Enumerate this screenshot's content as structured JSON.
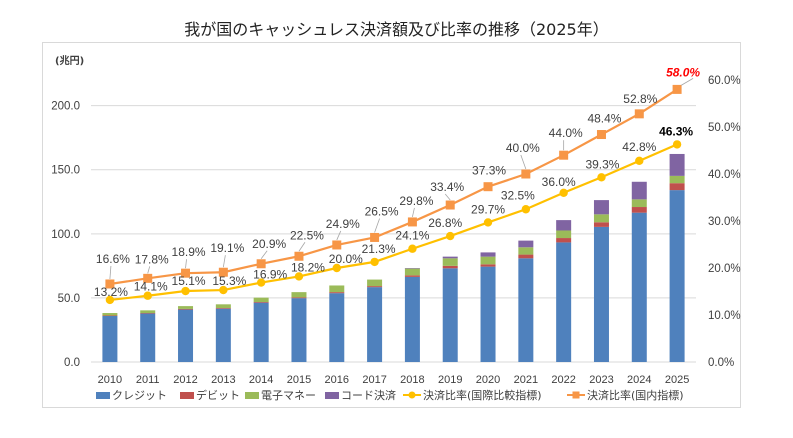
{
  "title": "我が国のキャッシュレス決済額及び比率の推移（2025年）",
  "chart_data": {
    "type": "bar",
    "subtype": "stacked bar with line overlay (secondary axis)",
    "title": "我が国のキャッシュレス決済額及び比率の推移（2025年）",
    "xlabel": "",
    "ylabel": "(兆円)",
    "y2label": "",
    "categories": [
      "2010",
      "2011",
      "2012",
      "2013",
      "2014",
      "2015",
      "2016",
      "2017",
      "2018",
      "2019",
      "2020",
      "2021",
      "2022",
      "2023",
      "2024",
      "2025"
    ],
    "ylim": [
      0,
      220
    ],
    "y_ticks": [
      0,
      50,
      100,
      150,
      200
    ],
    "y_tick_labels": [
      "0.0",
      "50.0",
      "100.0",
      "150.0",
      "200.0"
    ],
    "y2lim": [
      0,
      60
    ],
    "y2_ticks": [
      0,
      10,
      20,
      30,
      40,
      50,
      60
    ],
    "y2_tick_labels": [
      "0.0%",
      "10.0%",
      "20.0%",
      "30.0%",
      "40.0%",
      "50.0%",
      "60.0%"
    ],
    "grid": true,
    "legend_position": "bottom",
    "series": [
      {
        "name": "クレジット",
        "type": "stacked_bar",
        "axis": "left",
        "color": "#4F81BD",
        "values": [
          35.9,
          37.8,
          40.9,
          41.6,
          46.3,
          49.8,
          53.7,
          58.4,
          66.4,
          73.1,
          74.4,
          80.9,
          93.3,
          105.4,
          116.5,
          134.1
        ]
      },
      {
        "name": "デビット",
        "type": "stacked_bar",
        "axis": "left",
        "color": "#C0504D",
        "values": [
          0.4,
          0.4,
          0.5,
          0.5,
          0.5,
          0.6,
          0.8,
          0.8,
          1.2,
          1.9,
          1.8,
          2.9,
          3.4,
          3.6,
          4.4,
          5.4
        ]
      },
      {
        "name": "電子マネー",
        "type": "stacked_bar",
        "axis": "left",
        "color": "#9BBB59",
        "values": [
          1.9,
          2.1,
          2.2,
          2.9,
          3.4,
          4.1,
          5.2,
          5.1,
          5.4,
          5.9,
          6.0,
          5.7,
          5.9,
          6.2,
          6.0,
          5.7
        ]
      },
      {
        "name": "コード決済",
        "type": "stacked_bar",
        "axis": "left",
        "color": "#8064A2",
        "values": [
          0,
          0,
          0,
          0,
          0,
          0,
          0,
          0,
          0.2,
          1.3,
          3.3,
          5.2,
          8.1,
          11.1,
          13.7,
          17.1
        ]
      },
      {
        "name": "決済比率(国際比較指標)",
        "type": "line",
        "axis": "right",
        "marker": "circle",
        "color": "#FFC000",
        "values": [
          13.2,
          14.1,
          15.1,
          15.3,
          16.9,
          18.2,
          20.0,
          21.3,
          24.1,
          26.8,
          29.7,
          32.5,
          36.0,
          39.3,
          42.8,
          46.3
        ],
        "labels": [
          "13.2%",
          "14.1%",
          "15.1%",
          "15.3%",
          "16.9%",
          "18.2%",
          "20.0%",
          "21.3%",
          "24.1%",
          "26.8%",
          "29.7%",
          "32.5%",
          "36.0%",
          "39.3%",
          "42.8%",
          "46.3%"
        ],
        "emphasis": {
          "index": 15,
          "color": "#000000",
          "bold": true,
          "italic": false
        }
      },
      {
        "name": "決済比率(国内指標)",
        "type": "line",
        "axis": "right",
        "marker": "square",
        "color": "#F79646",
        "values": [
          16.6,
          17.8,
          18.9,
          19.1,
          20.9,
          22.5,
          24.9,
          26.5,
          29.8,
          33.4,
          37.3,
          40.0,
          44.0,
          48.4,
          52.8,
          58.0
        ],
        "labels": [
          "16.6%",
          "17.8%",
          "18.9%",
          "19.1%",
          "20.9%",
          "22.5%",
          "24.9%",
          "26.5%",
          "29.8%",
          "33.4%",
          "37.3%",
          "40.0%",
          "44.0%",
          "48.4%",
          "52.8%",
          "58.0%"
        ],
        "emphasis": {
          "index": 15,
          "color": "#FF0000",
          "bold": true,
          "italic": true
        }
      }
    ]
  },
  "legend": {
    "items": [
      {
        "label": "クレジット",
        "icon": "square-swatch",
        "color": "#4F81BD"
      },
      {
        "label": "デビット",
        "icon": "square-swatch",
        "color": "#C0504D"
      },
      {
        "label": "電子マネー",
        "icon": "square-swatch",
        "color": "#9BBB59"
      },
      {
        "label": "コード決済",
        "icon": "square-swatch",
        "color": "#8064A2"
      },
      {
        "label": "決済比率(国際比較指標)",
        "icon": "line-circle-marker",
        "color": "#FFC000"
      },
      {
        "label": "決済比率(国内指標)",
        "icon": "line-square-marker",
        "color": "#F79646"
      }
    ]
  }
}
